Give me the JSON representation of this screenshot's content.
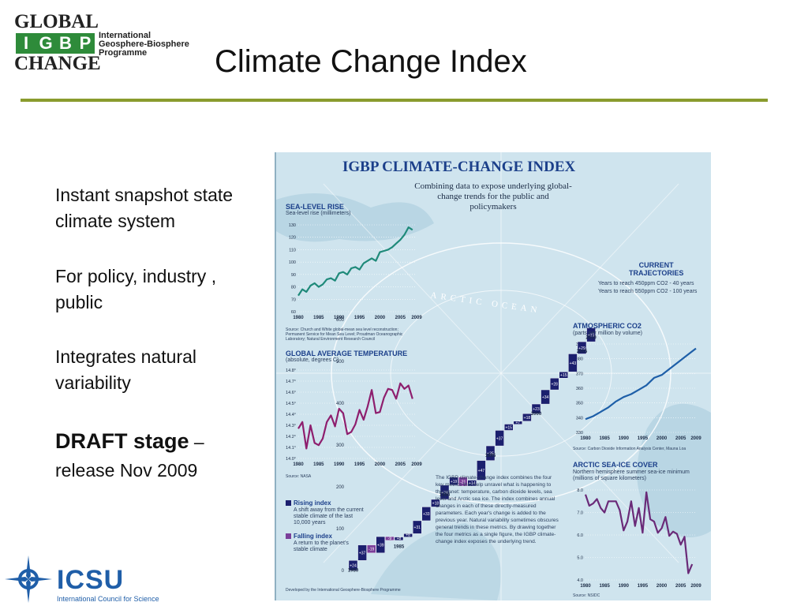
{
  "logos": {
    "igbp": {
      "global": "GLOBAL",
      "letters": [
        "I",
        "G",
        "B",
        "P"
      ],
      "change": "CHANGE",
      "line1": "International",
      "line2": "Geosphere-Biosphere",
      "line3": "Programme"
    },
    "icsu": {
      "name": "ICSU",
      "subtitle": "International Council for Science"
    }
  },
  "slide": {
    "title": "Climate Change Index",
    "bullets": [
      {
        "line1": "Instant snapshot state",
        "line2": "climate system"
      },
      {
        "line1": "For policy, industry ,",
        "line2": "public"
      },
      {
        "line1": "Integrates natural",
        "line2": "variability"
      }
    ],
    "draft": {
      "strong": "DRAFT stage",
      "dash": "–",
      "line2": "release Nov 2009"
    }
  },
  "poster": {
    "title": "IGBP CLIMATE-CHANGE INDEX",
    "subtitle": "Combining data to expose underlying global-change trends for the public and policymakers",
    "ocean_label": "ARCTIC OCEAN",
    "sea_level": {
      "heading": "SEA-LEVEL RISE",
      "unit": "Sea-level rise (millimeters)",
      "source": "Source: Church and White global-mean sea level reconstruction; Permanent Service for Mean Sea Level; Proudman Oceanographic Laboratory; Natural Environment Research Council",
      "yticks": [
        "130",
        "120",
        "110",
        "100",
        "90",
        "80",
        "70",
        "60"
      ]
    },
    "temperature": {
      "heading": "GLOBAL AVERAGE TEMPERATURE",
      "unit": "(absolute, degrees C)",
      "source": "Source: NASA",
      "yticks": [
        "14.8°",
        "14.7°",
        "14.6°",
        "14.5°",
        "14.4°",
        "14.3°",
        "14.2°",
        "14.1°",
        "14.0°"
      ]
    },
    "co2": {
      "heading": "ATMOSPHERIC CO2",
      "unit": "(parts per million by volume)",
      "source": "Source: Carbon Dioxide Information Analysis Center, Mauna Loa",
      "yticks": [
        "390",
        "380",
        "370",
        "360",
        "350",
        "340",
        "330"
      ]
    },
    "sea_ice": {
      "heading": "ARCTIC SEA-ICE COVER",
      "unit": "Northern hemisphere summer sea-ice minimum (millions of square kilometers)",
      "source": "Source: NSIDC",
      "yticks": [
        "8.0",
        "7.0",
        "6.0",
        "5.0",
        "4.0"
      ]
    },
    "trajectories": {
      "heading1": "CURRENT",
      "heading2": "TRAJECTORIES",
      "line1": "Years to reach 450ppm CO2 - 40 years",
      "line2": "Years to reach 550ppm CO2 - 100 years"
    },
    "years_axis": [
      "1980",
      "1985",
      "1990",
      "1995",
      "2000",
      "2005",
      "2009"
    ],
    "index_years": [
      "1980",
      "1985",
      "1990",
      "1995",
      "2000",
      "2005",
      "2010"
    ],
    "index_ticks": [
      "600",
      "500",
      "400",
      "300",
      "200",
      "100",
      "0"
    ],
    "index_steps": [
      {
        "label": "+24",
        "v": 24,
        "up": true
      },
      {
        "label": "+37",
        "v": 61,
        "up": true
      },
      {
        "label": "-19",
        "v": 42,
        "up": false
      },
      {
        "label": "+39",
        "v": 81,
        "up": true
      },
      {
        "label": "-9",
        "v": 72,
        "up": false
      },
      {
        "label": "+8",
        "v": 80,
        "up": true
      },
      {
        "label": "+8",
        "v": 88,
        "up": true
      },
      {
        "label": "+31",
        "v": 119,
        "up": true
      },
      {
        "label": "+33",
        "v": 152,
        "up": true
      },
      {
        "label": "+18",
        "v": 170,
        "up": true
      },
      {
        "label": "+34",
        "v": 204,
        "up": true
      },
      {
        "label": "+19",
        "v": 223,
        "up": true
      },
      {
        "label": "-21",
        "v": 202,
        "up": false
      },
      {
        "label": "+14",
        "v": 216,
        "up": true
      },
      {
        "label": "+47",
        "v": 263,
        "up": true
      },
      {
        "label": "+35",
        "v": 298,
        "up": true
      },
      {
        "label": "+37",
        "v": 335,
        "up": true
      },
      {
        "label": "+15",
        "v": 350,
        "up": true
      },
      {
        "label": "+7",
        "v": 357,
        "up": true
      },
      {
        "label": "+18",
        "v": 375,
        "up": true
      },
      {
        "label": "+23",
        "v": 398,
        "up": true
      },
      {
        "label": "+34",
        "v": 432,
        "up": true
      },
      {
        "label": "+28",
        "v": 460,
        "up": true
      },
      {
        "label": "+15",
        "v": 475,
        "up": true
      },
      {
        "label": "+43",
        "v": 518,
        "up": true
      },
      {
        "label": "+29",
        "v": 547,
        "up": true
      },
      {
        "label": "+33",
        "v": 580,
        "up": true
      }
    ],
    "legend": {
      "rising": "Rising index",
      "rising_desc": "A shift away from the current stable climate of the last 10,000 years",
      "falling": "Falling index",
      "falling_desc": "A return to the planet's stable climate"
    },
    "explainer": "The IGBP climate-change index combines the four key metrics that help unravel what is happening to the planet: temperature, carbon dioxide levels, sea level and Arctic sea ice. The index combines annual changes in each of these directly-measured parameters. Each year's change is added to the previous year. Natural variability sometimes obscures general trends in these metrics. By drawing together the four metrics as a single figure, the IGBP climate-change index exposes the underlying trend.",
    "footer": "Developed by the International Geosphere-Biosphere Programme",
    "colors": {
      "rising": "#1b1f6e",
      "falling": "#7b3f9a",
      "sea_line": "#1f8a7a",
      "temp_line": "#8e1e6e",
      "co2_line": "#1e5fa8",
      "ice_line": "#6a2a78"
    }
  },
  "chart_data": [
    {
      "type": "line",
      "title": "SEA-LEVEL RISE",
      "ylabel": "Sea-level rise (millimeters)",
      "ylim": [
        60,
        130
      ],
      "x": [
        1980,
        1981,
        1982,
        1983,
        1984,
        1985,
        1986,
        1987,
        1988,
        1989,
        1990,
        1991,
        1992,
        1993,
        1994,
        1995,
        1996,
        1997,
        1998,
        1999,
        2000,
        2001,
        2002,
        2003,
        2004,
        2005,
        2006,
        2007,
        2008
      ],
      "values": [
        73,
        78,
        76,
        81,
        83,
        80,
        82,
        86,
        87,
        85,
        91,
        92,
        90,
        95,
        96,
        94,
        99,
        101,
        103,
        101,
        108,
        109,
        110,
        112,
        115,
        118,
        122,
        128,
        126
      ]
    },
    {
      "type": "line",
      "title": "GLOBAL AVERAGE TEMPERATURE",
      "ylabel": "(absolute, degrees C)",
      "ylim": [
        14.0,
        14.8
      ],
      "x": [
        1980,
        1981,
        1982,
        1983,
        1984,
        1985,
        1986,
        1987,
        1988,
        1989,
        1990,
        1991,
        1992,
        1993,
        1994,
        1995,
        1996,
        1997,
        1998,
        1999,
        2000,
        2001,
        2002,
        2003,
        2004,
        2005,
        2006,
        2007,
        2008
      ],
      "values": [
        14.27,
        14.33,
        14.09,
        14.3,
        14.14,
        14.12,
        14.18,
        14.33,
        14.39,
        14.29,
        14.45,
        14.41,
        14.22,
        14.24,
        14.31,
        14.44,
        14.35,
        14.47,
        14.62,
        14.41,
        14.42,
        14.55,
        14.63,
        14.62,
        14.54,
        14.68,
        14.63,
        14.66,
        14.54
      ]
    },
    {
      "type": "line",
      "title": "ATMOSPHERIC CO2",
      "ylabel": "(parts per million by volume)",
      "ylim": [
        330,
        390
      ],
      "x": [
        1980,
        1982,
        1984,
        1986,
        1988,
        1990,
        1992,
        1994,
        1996,
        1998,
        2000,
        2002,
        2004,
        2006,
        2008,
        2009
      ],
      "values": [
        339,
        341,
        344,
        347,
        351,
        354,
        356,
        359,
        362,
        367,
        369,
        373,
        377,
        381,
        385,
        387
      ]
    },
    {
      "type": "line",
      "title": "ARCTIC SEA-ICE COVER",
      "ylabel": "Northern hemisphere summer sea-ice minimum (millions of square kilometers)",
      "ylim": [
        4.0,
        8.0
      ],
      "x": [
        1980,
        1981,
        1982,
        1983,
        1984,
        1985,
        1986,
        1987,
        1988,
        1989,
        1990,
        1991,
        1992,
        1993,
        1994,
        1995,
        1996,
        1997,
        1998,
        1999,
        2000,
        2001,
        2002,
        2003,
        2004,
        2005,
        2006,
        2007,
        2008
      ],
      "values": [
        7.8,
        7.3,
        7.4,
        7.6,
        7.2,
        7.0,
        7.5,
        7.5,
        7.5,
        7.1,
        6.2,
        6.6,
        7.5,
        6.4,
        7.2,
        6.1,
        7.9,
        6.7,
        6.6,
        6.1,
        6.3,
        6.8,
        5.96,
        6.15,
        6.05,
        5.57,
        5.92,
        4.3,
        4.7
      ]
    }
  ]
}
